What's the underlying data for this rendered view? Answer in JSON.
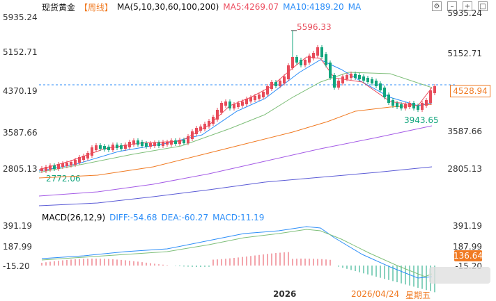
{
  "header": {
    "title": "现货黄金",
    "period": "【周线】",
    "ma_label": "MA(5,10,30,60,100,200)",
    "ma5": "MA5:4269.07",
    "ma10": "MA10:4189.20",
    "ma_more": "MA"
  },
  "axis_left": [
    "5935.24",
    "5152.71",
    "4370.19",
    "3587.66",
    "2805.13"
  ],
  "axis_right": [
    "5935.24",
    "5152.71",
    "4528.94",
    "3587.66",
    "2805.13"
  ],
  "price_labels": {
    "high": "5596.33",
    "low": "3943.65",
    "start": "2772.06"
  },
  "macd": {
    "label": "MACD(26,12,9)",
    "diff": "DIFF:-54.68",
    "dea": "DEA:-60.27",
    "macd": "MACD:11.19",
    "axis_left": [
      "391.19",
      "187.99",
      "-15.20"
    ],
    "axis_right": [
      "391.19",
      "187.99",
      "136.64",
      "-15.20"
    ]
  },
  "footer": {
    "year": "2026",
    "date": "2026/04/24",
    "weekday": "星期五"
  },
  "colors": {
    "up": "#e74b5a",
    "down": "#12a57d",
    "ma5": "#ec4d5f",
    "ma10": "#2c8ef8",
    "ma30": "#f07a22",
    "ma60": "#7fbf7a",
    "ma100": "#a45be6",
    "ma200": "#5b5bd6"
  }
}
